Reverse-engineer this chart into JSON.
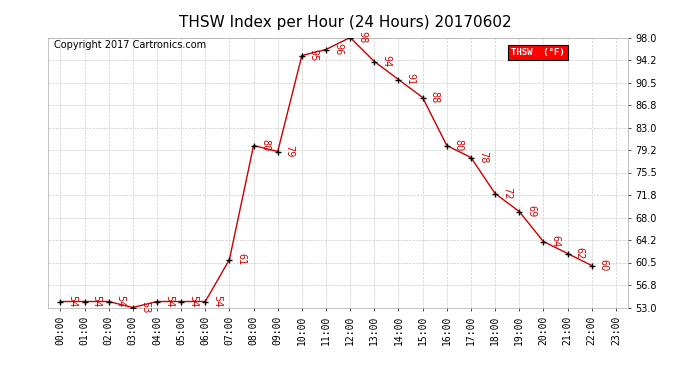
{
  "title": "THSW Index per Hour (24 Hours) 20170602",
  "copyright": "Copyright 2017 Cartronics.com",
  "legend_label": "THSW  (°F)",
  "hours": [
    0,
    1,
    2,
    3,
    4,
    5,
    6,
    7,
    8,
    9,
    10,
    11,
    12,
    13,
    14,
    15,
    16,
    17,
    18,
    19,
    20,
    21,
    22,
    23
  ],
  "values": [
    54,
    54,
    54,
    53,
    54,
    54,
    54,
    61,
    80,
    79,
    95,
    96,
    98,
    94,
    91,
    88,
    80,
    78,
    72,
    69,
    64,
    62,
    60,
    null
  ],
  "ylim": [
    53.0,
    98.0
  ],
  "yticks": [
    53.0,
    56.8,
    60.5,
    64.2,
    68.0,
    71.8,
    75.5,
    79.2,
    83.0,
    86.8,
    90.5,
    94.2,
    98.0
  ],
  "line_color": "#cc0000",
  "marker_color": "#000000",
  "bg_color": "#ffffff",
  "grid_color": "#cccccc",
  "title_fontsize": 11,
  "label_fontsize": 7,
  "annot_fontsize": 7,
  "copyright_fontsize": 7,
  "figsize": [
    6.9,
    3.75
  ],
  "dpi": 100
}
